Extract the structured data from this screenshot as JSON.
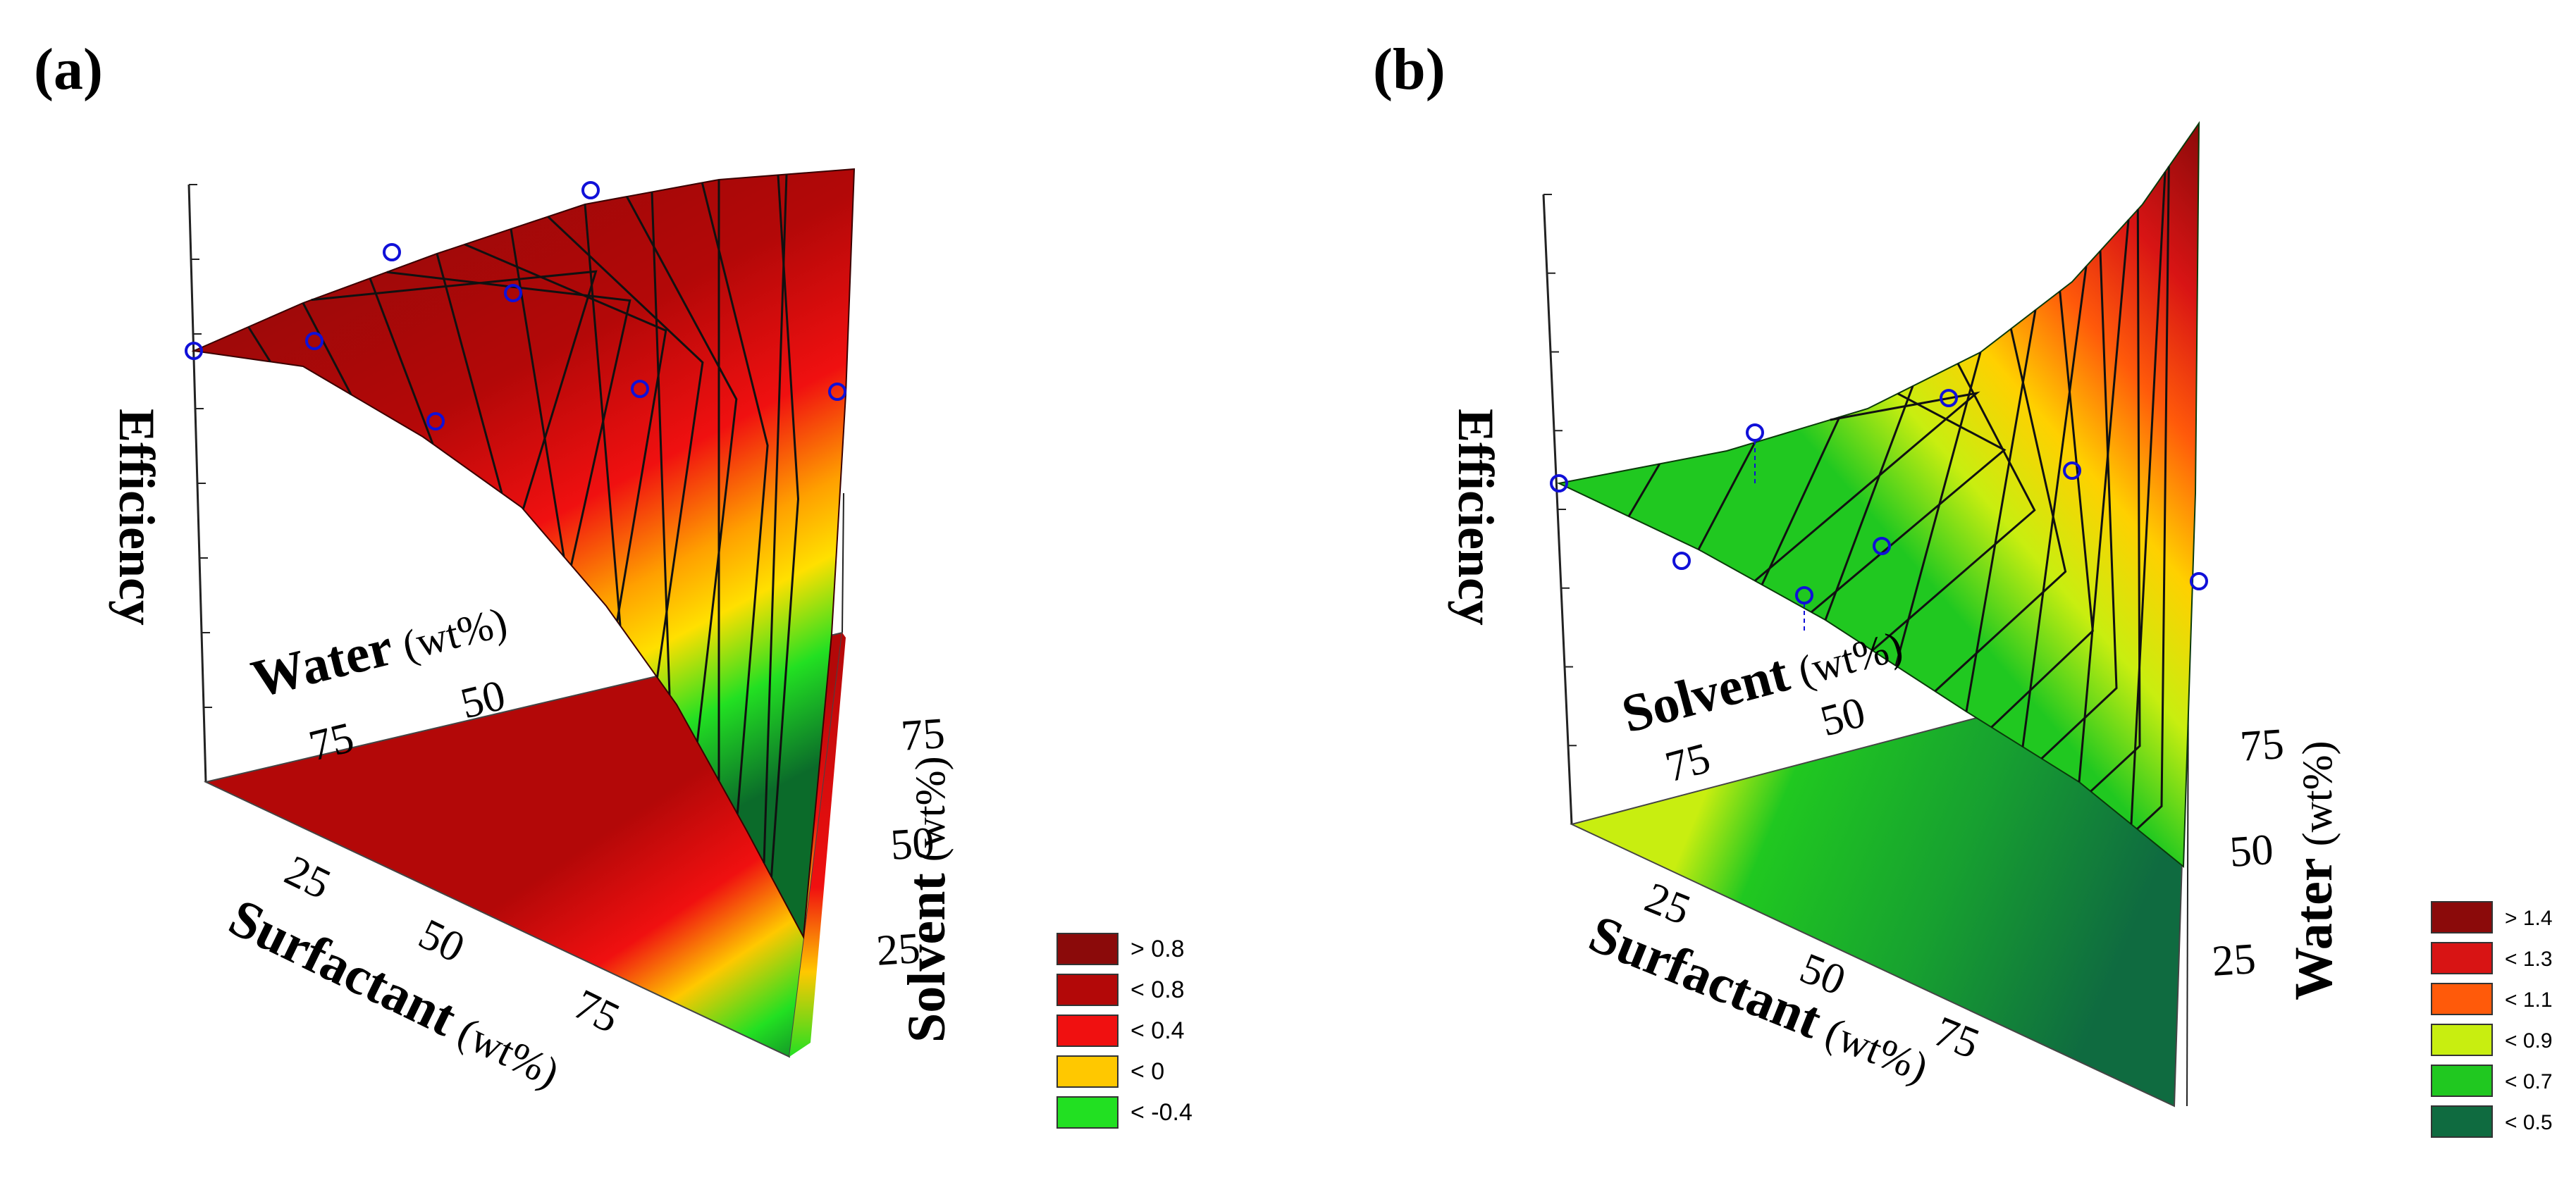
{
  "chart_data": [
    {
      "id": "a",
      "panel_label": "(a)",
      "type": "surface-3d-ternary",
      "title": "",
      "zlabel": "Efficiency",
      "axes": {
        "water": {
          "name": "Water",
          "unit": "(wt%)",
          "ticks": [
            "75",
            "50"
          ]
        },
        "surfactant": {
          "name": "Surfactant",
          "unit": "(wt%)",
          "ticks": [
            "25",
            "50",
            "75"
          ]
        },
        "solvent": {
          "name": "Solvent",
          "unit": "(wt%)",
          "ticks": [
            "25",
            "50",
            "75"
          ]
        }
      },
      "legend": [
        {
          "label": "> 0.8",
          "color": "#8b0a0a"
        },
        {
          "label": "< 0.8",
          "color": "#b30808"
        },
        {
          "label": "< 0.4",
          "color": "#f01010"
        },
        {
          "label": "< 0",
          "color": "#ffc800"
        },
        {
          "label": "< -0.4",
          "color": "#22e022"
        }
      ],
      "colors": {
        "surface": "#b30808",
        "surface_dark": "#8b0a0a",
        "point": "#1010d8"
      }
    },
    {
      "id": "b",
      "panel_label": "(b)",
      "type": "surface-3d-ternary",
      "title": "",
      "zlabel": "Efficiency",
      "axes": {
        "solvent": {
          "name": "Solvent",
          "unit": "(wt%)",
          "ticks": [
            "75",
            "50"
          ]
        },
        "surfactant": {
          "name": "Surfactant",
          "unit": "(wt%)",
          "ticks": [
            "25",
            "50",
            "75"
          ]
        },
        "water": {
          "name": "Water",
          "unit": "(wt%)",
          "ticks": [
            "25",
            "50",
            "75"
          ]
        }
      },
      "legend": [
        {
          "label": "> 1.4",
          "color": "#8b0a0a"
        },
        {
          "label": "< 1.3",
          "color": "#d81414"
        },
        {
          "label": "< 1.1",
          "color": "#ff5a0a"
        },
        {
          "label": "< 0.9",
          "color": "#c8ee10"
        },
        {
          "label": "< 0.7",
          "color": "#20c820"
        },
        {
          "label": "< 0.5",
          "color": "#0f6b40"
        }
      ],
      "colors": {
        "surface": "#20c820",
        "surface_dark": "#0f6b40",
        "point": "#1010d8"
      }
    }
  ]
}
